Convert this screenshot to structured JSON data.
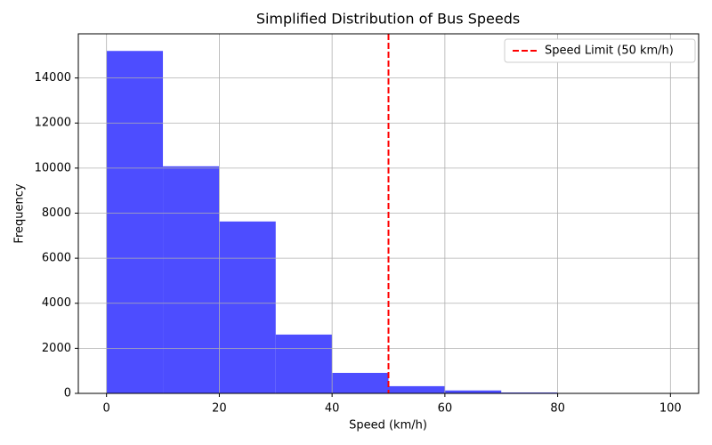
{
  "chart_data": {
    "type": "histogram",
    "title": "Simplified Distribution of Bus Speeds",
    "xlabel": "Speed (km/h)",
    "ylabel": "Frequency",
    "bins": [
      0,
      10,
      20,
      30,
      40,
      50,
      60,
      70,
      80,
      90,
      100
    ],
    "counts": [
      15200,
      10080,
      7630,
      2610,
      910,
      320,
      130,
      40,
      20,
      10
    ],
    "color": "#4d4dff",
    "xlim": [
      -5,
      105
    ],
    "xticks": [
      0,
      20,
      40,
      60,
      80,
      100
    ],
    "ylim": [
      0,
      15960
    ],
    "yticks": [
      0,
      2000,
      4000,
      6000,
      8000,
      10000,
      12000,
      14000
    ],
    "grid": true,
    "vline": {
      "x": 50,
      "label": "Speed Limit (50 km/h)",
      "color": "#ff0000"
    },
    "legend": "upper right"
  }
}
